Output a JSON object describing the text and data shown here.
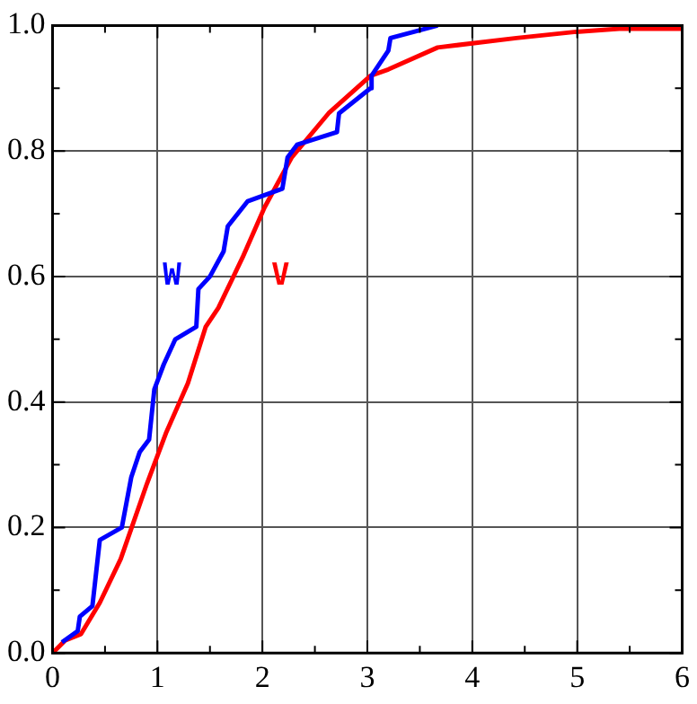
{
  "chart_data": {
    "type": "line",
    "xlim": [
      0,
      6
    ],
    "ylim": [
      0,
      1
    ],
    "xticks": [
      0,
      {
        "value": 0.5,
        "label": null
      },
      1,
      {
        "value": 1.5,
        "label": null
      },
      2,
      {
        "value": 2.5,
        "label": null
      },
      3,
      {
        "value": 3.5,
        "label": null
      },
      4,
      {
        "value": 4.5,
        "label": null
      },
      5,
      {
        "value": 5.5,
        "label": null
      },
      6
    ],
    "yticks": [
      {
        "value": 0,
        "label": "0.0"
      },
      {
        "value": 0.1,
        "label": null
      },
      {
        "value": 0.2,
        "label": "0.2"
      },
      {
        "value": 0.3,
        "label": null
      },
      {
        "value": 0.4,
        "label": "0.4"
      },
      {
        "value": 0.5,
        "label": null
      },
      {
        "value": 0.6,
        "label": "0.6"
      },
      {
        "value": 0.7,
        "label": null
      },
      {
        "value": 0.8,
        "label": "0.8"
      },
      {
        "value": 0.9,
        "label": null
      },
      {
        "value": 1,
        "label": "1.0"
      }
    ],
    "grid": true,
    "marker": "none",
    "line_style": "solid",
    "series": [
      {
        "name": "W",
        "color": "#0000ff",
        "x": [
          0.09,
          0.24,
          0.26,
          0.38,
          0.45,
          0.66,
          0.75,
          0.83,
          0.92,
          0.97,
          1.06,
          1.17,
          1.37,
          1.39,
          1.5,
          1.63,
          1.67,
          1.86,
          2.19,
          2.24,
          2.33,
          2.71,
          2.73,
          3.03,
          3.04,
          3.2,
          3.22,
          3.67
        ],
        "values": [
          0.017,
          0.035,
          0.058,
          0.075,
          0.18,
          0.2,
          0.28,
          0.32,
          0.34,
          0.42,
          0.46,
          0.5,
          0.52,
          0.58,
          0.6,
          0.64,
          0.68,
          0.72,
          0.74,
          0.79,
          0.81,
          0.83,
          0.86,
          0.9,
          0.92,
          0.96,
          0.98,
          1.0
        ]
      },
      {
        "name": "V",
        "color": "#ff0000",
        "x": [
          0,
          0.12,
          0.27,
          0.45,
          0.65,
          0.9,
          1.08,
          1.29,
          1.46,
          1.58,
          1.81,
          2.02,
          2.28,
          2.63,
          3.03,
          3.2,
          3.67,
          4.42,
          4.99,
          5.4,
          6.0
        ],
        "values": [
          0,
          0.02,
          0.03,
          0.08,
          0.15,
          0.27,
          0.35,
          0.43,
          0.52,
          0.55,
          0.63,
          0.71,
          0.79,
          0.86,
          0.92,
          0.93,
          0.965,
          0.98,
          0.99,
          0.995,
          0.995
        ]
      }
    ]
  }
}
